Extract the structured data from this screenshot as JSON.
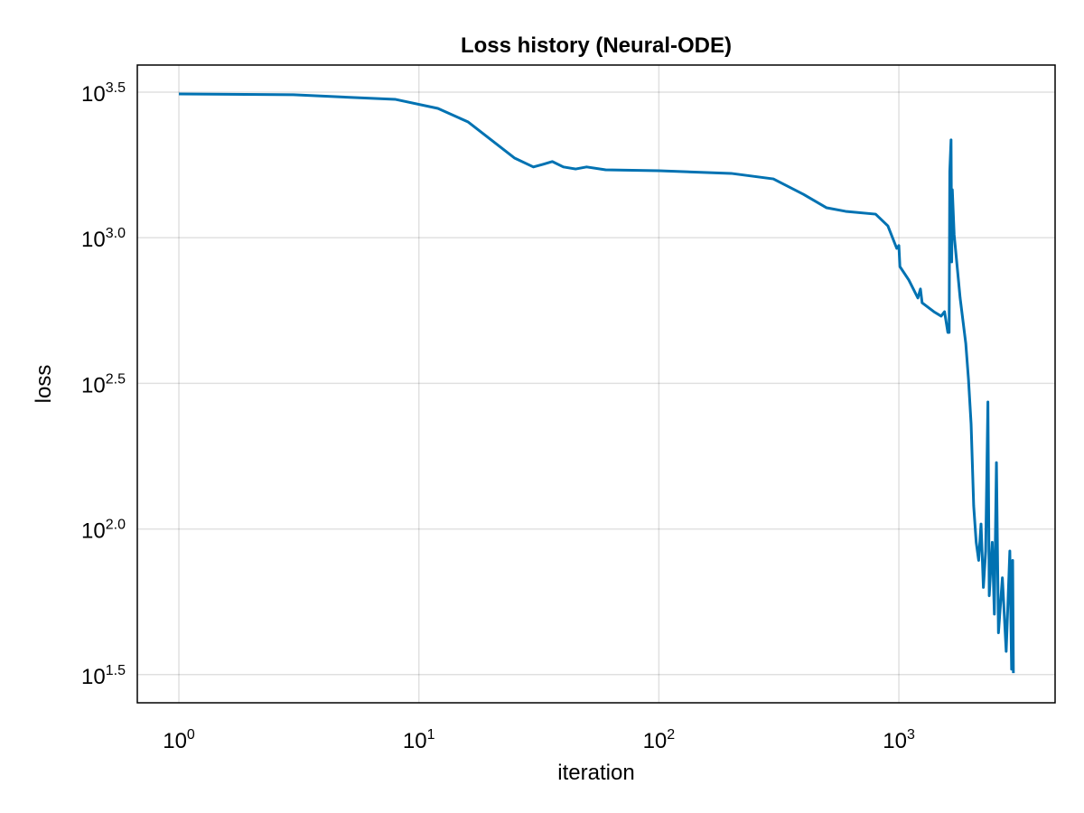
{
  "chart_data": {
    "type": "line",
    "title": "Loss history (Neural-ODE)",
    "xlabel": "iteration",
    "ylabel": "loss",
    "xscale": "log",
    "yscale": "log",
    "grid": true,
    "color": "#0072b2",
    "xlim": [
      0.671,
      4477
    ],
    "ylim": [
      25.3,
      3917
    ],
    "xticks": [
      {
        "value": 1,
        "label": "10",
        "superscript": "0"
      },
      {
        "value": 10,
        "label": "10",
        "superscript": "1"
      },
      {
        "value": 100,
        "label": "10",
        "superscript": "2"
      },
      {
        "value": 1000,
        "label": "10",
        "superscript": "3"
      }
    ],
    "yticks": [
      {
        "value": 31.6228,
        "label": "10",
        "superscript": "1.5"
      },
      {
        "value": 100,
        "label": "10",
        "superscript": "2.0"
      },
      {
        "value": 316.228,
        "label": "10",
        "superscript": "2.5"
      },
      {
        "value": 1000,
        "label": "10",
        "superscript": "3.0"
      },
      {
        "value": 3162.28,
        "label": "10",
        "superscript": "3.5"
      }
    ],
    "x": [
      1,
      3,
      8,
      12,
      16,
      20,
      25,
      30,
      33,
      36,
      40,
      45,
      50,
      60,
      100,
      200,
      300,
      400,
      500,
      600,
      800,
      900,
      980,
      1000,
      1010,
      1100,
      1200,
      1230,
      1250,
      1400,
      1500,
      1550,
      1600,
      1620,
      1630,
      1650,
      1660,
      1670,
      1700,
      1800,
      1900,
      1950,
      2000,
      2050,
      2100,
      2150,
      2200,
      2250,
      2300,
      2350,
      2380,
      2450,
      2500,
      2550,
      2600,
      2700,
      2800,
      2900,
      2950,
      2980,
      3000
    ],
    "values": [
      3118,
      3097,
      2985,
      2780,
      2500,
      2168,
      1879,
      1750,
      1788,
      1826,
      1750,
      1722,
      1750,
      1711,
      1698,
      1663,
      1592,
      1410,
      1267,
      1232,
      1205,
      1098,
      919,
      940,
      796,
      716,
      621,
      667,
      598,
      557,
      538,
      557,
      473,
      473,
      1687,
      2168,
      826,
      1462,
      1023,
      621,
      434,
      327,
      229,
      120,
      90,
      78,
      104,
      63,
      84,
      273,
      59,
      90,
      51,
      169,
      44,
      68,
      38,
      84,
      33,
      78,
      32
    ]
  }
}
